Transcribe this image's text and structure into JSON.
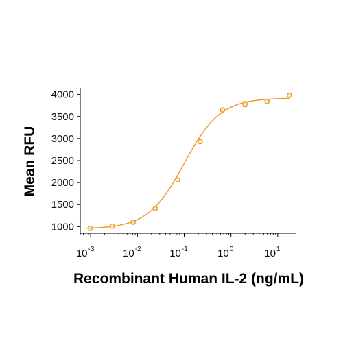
{
  "chart_data": {
    "type": "scatter",
    "title": "",
    "xlabel": "Recombinant Human IL-2 (ng/mL)",
    "ylabel": "Mean RFU",
    "x_scale": "log",
    "xlim": [
      0.0006,
      25
    ],
    "ylim": [
      850,
      4150
    ],
    "x_ticks": [
      {
        "value": 0.001,
        "base": "10",
        "exp": "-3"
      },
      {
        "value": 0.01,
        "base": "10",
        "exp": "-2"
      },
      {
        "value": 0.1,
        "base": "10",
        "exp": "-1"
      },
      {
        "value": 1,
        "base": "10",
        "exp": "0"
      },
      {
        "value": 10,
        "base": "10",
        "exp": "1"
      }
    ],
    "y_ticks": [
      1000,
      1500,
      2000,
      2500,
      3000,
      3500,
      4000
    ],
    "grid": false,
    "color": "#F0961E",
    "series": [
      {
        "points": [
          {
            "x": 0.00098,
            "y": 960,
            "err": 15
          },
          {
            "x": 0.0029,
            "y": 1010,
            "err": 15
          },
          {
            "x": 0.0081,
            "y": 1100,
            "err": 20
          },
          {
            "x": 0.024,
            "y": 1410,
            "err": 30
          },
          {
            "x": 0.073,
            "y": 2060,
            "err": 25
          },
          {
            "x": 0.22,
            "y": 2930,
            "err": 25
          },
          {
            "x": 0.66,
            "y": 3650,
            "err": 30
          },
          {
            "x": 2.0,
            "y": 3780,
            "err": 60
          },
          {
            "x": 5.9,
            "y": 3840,
            "err": 30
          },
          {
            "x": 17.8,
            "y": 3980,
            "err": 20
          }
        ]
      }
    ],
    "fit": {
      "bottom": 950,
      "top": 3920,
      "ec50": 0.1,
      "hill": 1.12
    }
  }
}
